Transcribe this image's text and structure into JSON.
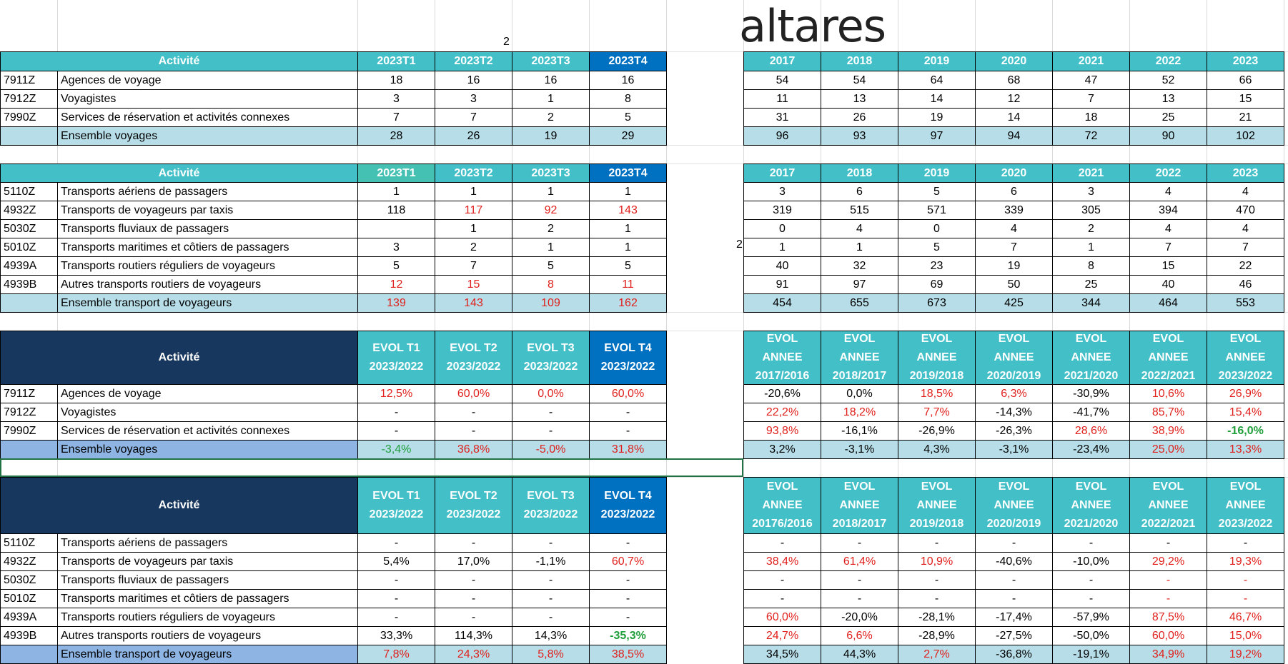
{
  "logo": "altares",
  "stray_values": [
    "2",
    "2"
  ],
  "colors": {
    "teal": "#43BFC7",
    "teal_alt": "#45C1B4",
    "blue": "#0070C0",
    "navy": "#17375E",
    "total_light": "#B7DEE8",
    "total_label": "#8DB4E2",
    "red": "#E0201C",
    "green": "#1F9E3A"
  },
  "sections": [
    {
      "kind": "count",
      "activity_header": "Activité",
      "quarter_headers": [
        [
          "2023T1"
        ],
        [
          "2023T2"
        ],
        [
          "2023T3"
        ],
        [
          "2023T4"
        ]
      ],
      "year_headers": [
        [
          "2017"
        ],
        [
          "2018"
        ],
        [
          "2019"
        ],
        [
          "2020"
        ],
        [
          "2021"
        ],
        [
          "2022"
        ],
        [
          "2023"
        ]
      ],
      "rows": [
        {
          "code": "7911Z",
          "label": "Agences de voyage",
          "q": [
            "18",
            "16",
            "16",
            "16"
          ],
          "qc": [
            "",
            "",
            "",
            ""
          ],
          "y": [
            "54",
            "54",
            "64",
            "68",
            "47",
            "52",
            "66"
          ],
          "yc": [
            "",
            "",
            "",
            "",
            "",
            "",
            ""
          ]
        },
        {
          "code": "7912Z",
          "label": "Voyagistes",
          "q": [
            "3",
            "3",
            "1",
            "8"
          ],
          "qc": [
            "",
            "",
            "",
            ""
          ],
          "y": [
            "11",
            "13",
            "14",
            "12",
            "7",
            "13",
            "15"
          ],
          "yc": [
            "",
            "",
            "",
            "",
            "",
            "",
            ""
          ]
        },
        {
          "code": "7990Z",
          "label": "Services de réservation et activités connexes",
          "q": [
            "7",
            "7",
            "2",
            "5"
          ],
          "qc": [
            "",
            "",
            "",
            ""
          ],
          "y": [
            "31",
            "26",
            "19",
            "14",
            "18",
            "25",
            "21"
          ],
          "yc": [
            "",
            "",
            "",
            "",
            "",
            "",
            ""
          ]
        },
        {
          "code": "",
          "label": "Ensemble voyages",
          "total": true,
          "q": [
            "28",
            "26",
            "19",
            "29"
          ],
          "qc": [
            "",
            "",
            "",
            ""
          ],
          "y": [
            "96",
            "93",
            "97",
            "94",
            "72",
            "90",
            "102"
          ],
          "yc": [
            "",
            "",
            "",
            "",
            "",
            "",
            ""
          ]
        }
      ]
    },
    {
      "kind": "count",
      "activity_header": "Activité",
      "quarter_headers": [
        [
          "2023T1"
        ],
        [
          "2023T2"
        ],
        [
          "2023T3"
        ],
        [
          "2023T4"
        ]
      ],
      "year_headers": [
        [
          "2017"
        ],
        [
          "2018"
        ],
        [
          "2019"
        ],
        [
          "2020"
        ],
        [
          "2021"
        ],
        [
          "2022"
        ],
        [
          "2023"
        ]
      ],
      "rows": [
        {
          "code": "5110Z",
          "label": "Transports aériens de passagers",
          "q": [
            "1",
            "1",
            "1",
            "1"
          ],
          "qc": [
            "",
            "",
            "",
            ""
          ],
          "y": [
            "3",
            "6",
            "5",
            "6",
            "3",
            "4",
            "4"
          ],
          "yc": [
            "",
            "",
            "",
            "",
            "",
            "",
            ""
          ]
        },
        {
          "code": "4932Z",
          "label": "Transports de voyageurs par taxis",
          "q": [
            "118",
            "117",
            "92",
            "143"
          ],
          "qc": [
            "",
            "r",
            "r",
            "r"
          ],
          "y": [
            "319",
            "515",
            "571",
            "339",
            "305",
            "394",
            "470"
          ],
          "yc": [
            "",
            "",
            "",
            "",
            "",
            "",
            ""
          ]
        },
        {
          "code": "5030Z",
          "label": "Transports fluviaux de passagers",
          "q": [
            "",
            "1",
            "2",
            "1"
          ],
          "qc": [
            "",
            "",
            "",
            ""
          ],
          "y": [
            "0",
            "4",
            "0",
            "4",
            "2",
            "4",
            "4"
          ],
          "yc": [
            "",
            "",
            "",
            "",
            "",
            "",
            ""
          ]
        },
        {
          "code": "5010Z",
          "label": "Transports maritimes et côtiers de passagers",
          "q": [
            "3",
            "2",
            "1",
            "1"
          ],
          "qc": [
            "",
            "",
            "",
            ""
          ],
          "y": [
            "1",
            "1",
            "5",
            "7",
            "1",
            "7",
            "7"
          ],
          "yc": [
            "",
            "",
            "",
            "",
            "",
            "",
            ""
          ]
        },
        {
          "code": "4939A",
          "label": "Transports routiers réguliers de voyageurs",
          "q": [
            "5",
            "7",
            "5",
            "5"
          ],
          "qc": [
            "",
            "",
            "",
            ""
          ],
          "y": [
            "40",
            "32",
            "23",
            "19",
            "8",
            "15",
            "22"
          ],
          "yc": [
            "",
            "",
            "",
            "",
            "",
            "",
            ""
          ]
        },
        {
          "code": "4939B",
          "label": "Autres transports routiers de voyageurs",
          "q": [
            "12",
            "15",
            "8",
            "11"
          ],
          "qc": [
            "r",
            "r",
            "r",
            "r"
          ],
          "y": [
            "91",
            "97",
            "69",
            "50",
            "25",
            "40",
            "46"
          ],
          "yc": [
            "",
            "",
            "",
            "",
            "",
            "",
            ""
          ]
        },
        {
          "code": "",
          "label": "Ensemble transport de voyageurs",
          "total": true,
          "q": [
            "139",
            "143",
            "109",
            "162"
          ],
          "qc": [
            "r",
            "r",
            "r",
            "r"
          ],
          "y": [
            "454",
            "655",
            "673",
            "425",
            "344",
            "464",
            "553"
          ],
          "yc": [
            "",
            "",
            "",
            "",
            "",
            "",
            ""
          ]
        }
      ]
    },
    {
      "kind": "evol",
      "activity_header": "Activité",
      "quarter_headers": [
        [
          "EVOL T1",
          "2023/2022"
        ],
        [
          "EVOL T2",
          "2023/2022"
        ],
        [
          "EVOL T3",
          "2023/2022"
        ],
        [
          "EVOL T4",
          "2023/2022"
        ]
      ],
      "year_headers": [
        [
          "EVOL",
          "ANNEE",
          "2017/2016"
        ],
        [
          "EVOL",
          "ANNEE",
          "2018/2017"
        ],
        [
          "EVOL",
          "ANNEE",
          "2019/2018"
        ],
        [
          "EVOL",
          "ANNEE",
          "2020/2019"
        ],
        [
          "EVOL",
          "ANNEE",
          "2021/2020"
        ],
        [
          "EVOL",
          "ANNEE",
          "2022/2021"
        ],
        [
          "EVOL",
          "ANNEE",
          "2023/2022"
        ]
      ],
      "rows": [
        {
          "code": "7911Z",
          "label": "Agences de voyage",
          "q": [
            "12,5%",
            "60,0%",
            "0,0%",
            "60,0%"
          ],
          "qc": [
            "r",
            "r",
            "r",
            "r"
          ],
          "y": [
            "-20,6%",
            "0,0%",
            "18,5%",
            "6,3%",
            "-30,9%",
            "10,6%",
            "26,9%"
          ],
          "yc": [
            "",
            "",
            "r",
            "r",
            "",
            "r",
            "r"
          ]
        },
        {
          "code": "7912Z",
          "label": "Voyagistes",
          "q": [
            "-",
            "-",
            "-",
            "-"
          ],
          "qc": [
            "",
            "",
            "",
            ""
          ],
          "y": [
            "22,2%",
            "18,2%",
            "7,7%",
            "-14,3%",
            "-41,7%",
            "85,7%",
            "15,4%"
          ],
          "yc": [
            "r",
            "r",
            "r",
            "",
            "",
            "r",
            "r"
          ]
        },
        {
          "code": "7990Z",
          "label": "Services de réservation et activités connexes",
          "q": [
            "-",
            "-",
            "-",
            "-"
          ],
          "qc": [
            "",
            "",
            "",
            ""
          ],
          "y": [
            "93,8%",
            "-16,1%",
            "-26,9%",
            "-26,3%",
            "28,6%",
            "38,9%",
            "-16,0%"
          ],
          "yc": [
            "r",
            "",
            "",
            "",
            "r",
            "r",
            "gb"
          ]
        },
        {
          "code": "",
          "label": "Ensemble voyages",
          "total": true,
          "q": [
            "-3,4%",
            "36,8%",
            "-5,0%",
            "31,8%"
          ],
          "qc": [
            "g",
            "r",
            "r",
            "r"
          ],
          "y": [
            "3,2%",
            "-3,1%",
            "4,3%",
            "-3,1%",
            "-23,4%",
            "25,0%",
            "13,3%"
          ],
          "yc": [
            "",
            "",
            "",
            "",
            "",
            "r",
            "r"
          ]
        }
      ]
    },
    {
      "kind": "evol",
      "activity_header": "Activité",
      "quarter_headers": [
        [
          "EVOL T1",
          "2023/2022"
        ],
        [
          "EVOL T2",
          "2023/2022"
        ],
        [
          "EVOL T3",
          "2023/2022"
        ],
        [
          "EVOL T4",
          "2023/2022"
        ]
      ],
      "year_headers": [
        [
          "EVOL",
          "ANNEE",
          "20176/2016"
        ],
        [
          "EVOL",
          "ANNEE",
          "2018/2017"
        ],
        [
          "EVOL",
          "ANNEE",
          "2019/2018"
        ],
        [
          "EVOL",
          "ANNEE",
          "2020/2019"
        ],
        [
          "EVOL",
          "ANNEE",
          "2021/2020"
        ],
        [
          "EVOL",
          "ANNEE",
          "2022/2021"
        ],
        [
          "EVOL",
          "ANNEE",
          "2023/2022"
        ]
      ],
      "rows": [
        {
          "code": "5110Z",
          "label": "Transports aériens de passagers",
          "q": [
            "-",
            "-",
            "-",
            "-"
          ],
          "qc": [
            "",
            "",
            "",
            ""
          ],
          "y": [
            "-",
            "-",
            "-",
            "-",
            "-",
            "-",
            "-"
          ],
          "yc": [
            "",
            "",
            "",
            "",
            "",
            "",
            ""
          ]
        },
        {
          "code": "4932Z",
          "label": "Transports de voyageurs par taxis",
          "q": [
            "5,4%",
            "17,0%",
            "-1,1%",
            "60,7%"
          ],
          "qc": [
            "",
            "",
            "",
            "r"
          ],
          "y": [
            "38,4%",
            "61,4%",
            "10,9%",
            "-40,6%",
            "-10,0%",
            "29,2%",
            "19,3%"
          ],
          "yc": [
            "r",
            "r",
            "r",
            "",
            "",
            "r",
            "r"
          ]
        },
        {
          "code": "5030Z",
          "label": "Transports fluviaux de passagers",
          "q": [
            "-",
            "-",
            "-",
            "-"
          ],
          "qc": [
            "",
            "",
            "",
            ""
          ],
          "y": [
            "-",
            "-",
            "-",
            "-",
            "-",
            "-",
            "-"
          ],
          "yc": [
            "",
            "",
            "",
            "",
            "",
            "r",
            "r"
          ]
        },
        {
          "code": "5010Z",
          "label": "Transports maritimes et côtiers de passagers",
          "q": [
            "-",
            "-",
            "-",
            "-"
          ],
          "qc": [
            "",
            "",
            "",
            ""
          ],
          "y": [
            "-",
            "-",
            "-",
            "-",
            "-",
            "-",
            "-"
          ],
          "yc": [
            "",
            "",
            "",
            "",
            "",
            "r",
            "r"
          ]
        },
        {
          "code": "4939A",
          "label": "Transports routiers réguliers de voyageurs",
          "q": [
            "-",
            "-",
            "-",
            "-"
          ],
          "qc": [
            "",
            "",
            "",
            ""
          ],
          "y": [
            "60,0%",
            "-20,0%",
            "-28,1%",
            "-17,4%",
            "-57,9%",
            "87,5%",
            "46,7%"
          ],
          "yc": [
            "r",
            "",
            "",
            "",
            "",
            "r",
            "r"
          ]
        },
        {
          "code": "4939B",
          "label": "Autres transports routiers de voyageurs",
          "q": [
            "33,3%",
            "114,3%",
            "14,3%",
            "-35,3%"
          ],
          "qc": [
            "",
            "",
            "",
            "gb"
          ],
          "y": [
            "24,7%",
            "6,6%",
            "-28,9%",
            "-27,5%",
            "-50,0%",
            "60,0%",
            "15,0%"
          ],
          "yc": [
            "r",
            "r",
            "",
            "",
            "",
            "r",
            "r"
          ]
        },
        {
          "code": "",
          "label": "Ensemble transport de voyageurs",
          "total": true,
          "q": [
            "7,8%",
            "24,3%",
            "5,8%",
            "38,5%"
          ],
          "qc": [
            "r",
            "r",
            "r",
            "r"
          ],
          "y": [
            "34,5%",
            "44,3%",
            "2,7%",
            "-36,8%",
            "-19,1%",
            "34,9%",
            "19,2%"
          ],
          "yc": [
            "",
            "",
            "r",
            "",
            "",
            "r",
            "r"
          ]
        }
      ]
    }
  ]
}
